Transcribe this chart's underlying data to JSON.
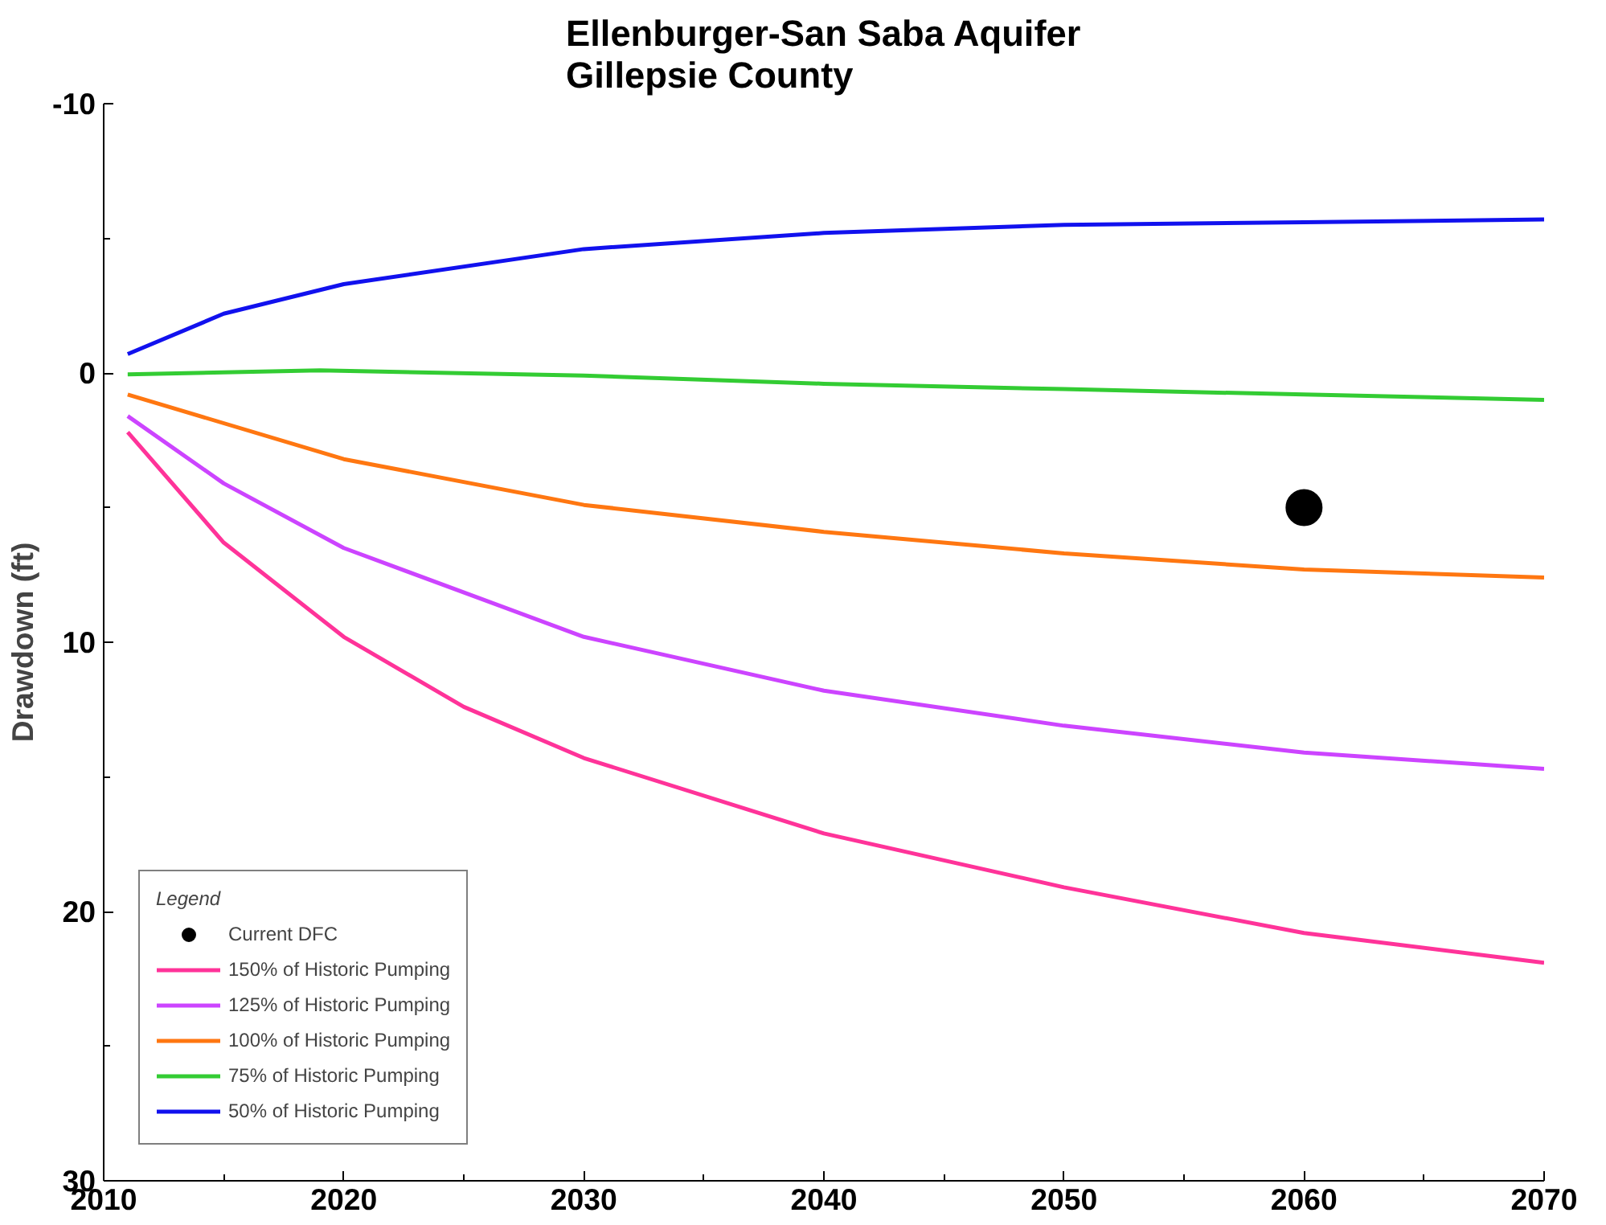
{
  "chart_data": {
    "type": "line",
    "title": "Ellenburger-San Saba Aquifer\nGillepsie County",
    "ylabel": "Drawdown (ft)",
    "legend_title": "Legend",
    "legend": "bottom left",
    "grid": false,
    "marker": "none",
    "line_style": "solid",
    "xlim": [
      2010,
      2070
    ],
    "ylim": [
      30,
      -10
    ],
    "xticks": [
      2010,
      {
        "value": 2015,
        "label": null
      },
      2020,
      {
        "value": 2025,
        "label": null
      },
      2030,
      {
        "value": 2035,
        "label": null
      },
      2040,
      {
        "value": 2045,
        "label": null
      },
      2050,
      {
        "value": 2055,
        "label": null
      },
      2060,
      {
        "value": 2065,
        "label": null
      },
      2070
    ],
    "yticks": [
      -10,
      {
        "value": -5,
        "label": null
      },
      0,
      {
        "value": 5,
        "label": null
      },
      10,
      {
        "value": 15,
        "label": null
      },
      20,
      {
        "value": 25,
        "label": null
      },
      30
    ],
    "series": [
      {
        "name": "Current DFC",
        "type": "scatter",
        "marker": "circle",
        "color": "#000000",
        "x": [
          2060
        ],
        "values": [
          5.0
        ]
      },
      {
        "name": "150% of Historic Pumping",
        "color": "#ff3399",
        "x": [
          2011,
          2015,
          2020,
          2025,
          2030,
          2040,
          2050,
          2060,
          2070
        ],
        "values": [
          2.2,
          6.3,
          9.8,
          12.4,
          14.3,
          17.1,
          19.1,
          20.8,
          21.9
        ]
      },
      {
        "name": "125% of Historic Pumping",
        "color": "#cc44ff",
        "x": [
          2011,
          2015,
          2020,
          2030,
          2040,
          2050,
          2060,
          2070
        ],
        "values": [
          1.6,
          4.1,
          6.5,
          9.8,
          11.8,
          13.1,
          14.1,
          14.7
        ]
      },
      {
        "name": "100% of Historic Pumping",
        "color": "#ff7711",
        "x": [
          2011,
          2020,
          2030,
          2040,
          2050,
          2060,
          2070
        ],
        "values": [
          0.8,
          3.2,
          4.9,
          5.9,
          6.7,
          7.3,
          7.6
        ]
      },
      {
        "name": "75% of Historic Pumping",
        "color": "#33cc33",
        "x": [
          2011,
          2019,
          2030,
          2040,
          2050,
          2060,
          2070
        ],
        "values": [
          0.05,
          -0.1,
          0.1,
          0.4,
          0.6,
          0.8,
          1.0
        ]
      },
      {
        "name": "50% of Historic Pumping",
        "color": "#1111ee",
        "x": [
          2011,
          2015,
          2020,
          2030,
          2040,
          2050,
          2060,
          2070
        ],
        "values": [
          -0.7,
          -2.2,
          -3.3,
          -4.6,
          -5.2,
          -5.5,
          -5.6,
          -5.7
        ]
      }
    ]
  }
}
